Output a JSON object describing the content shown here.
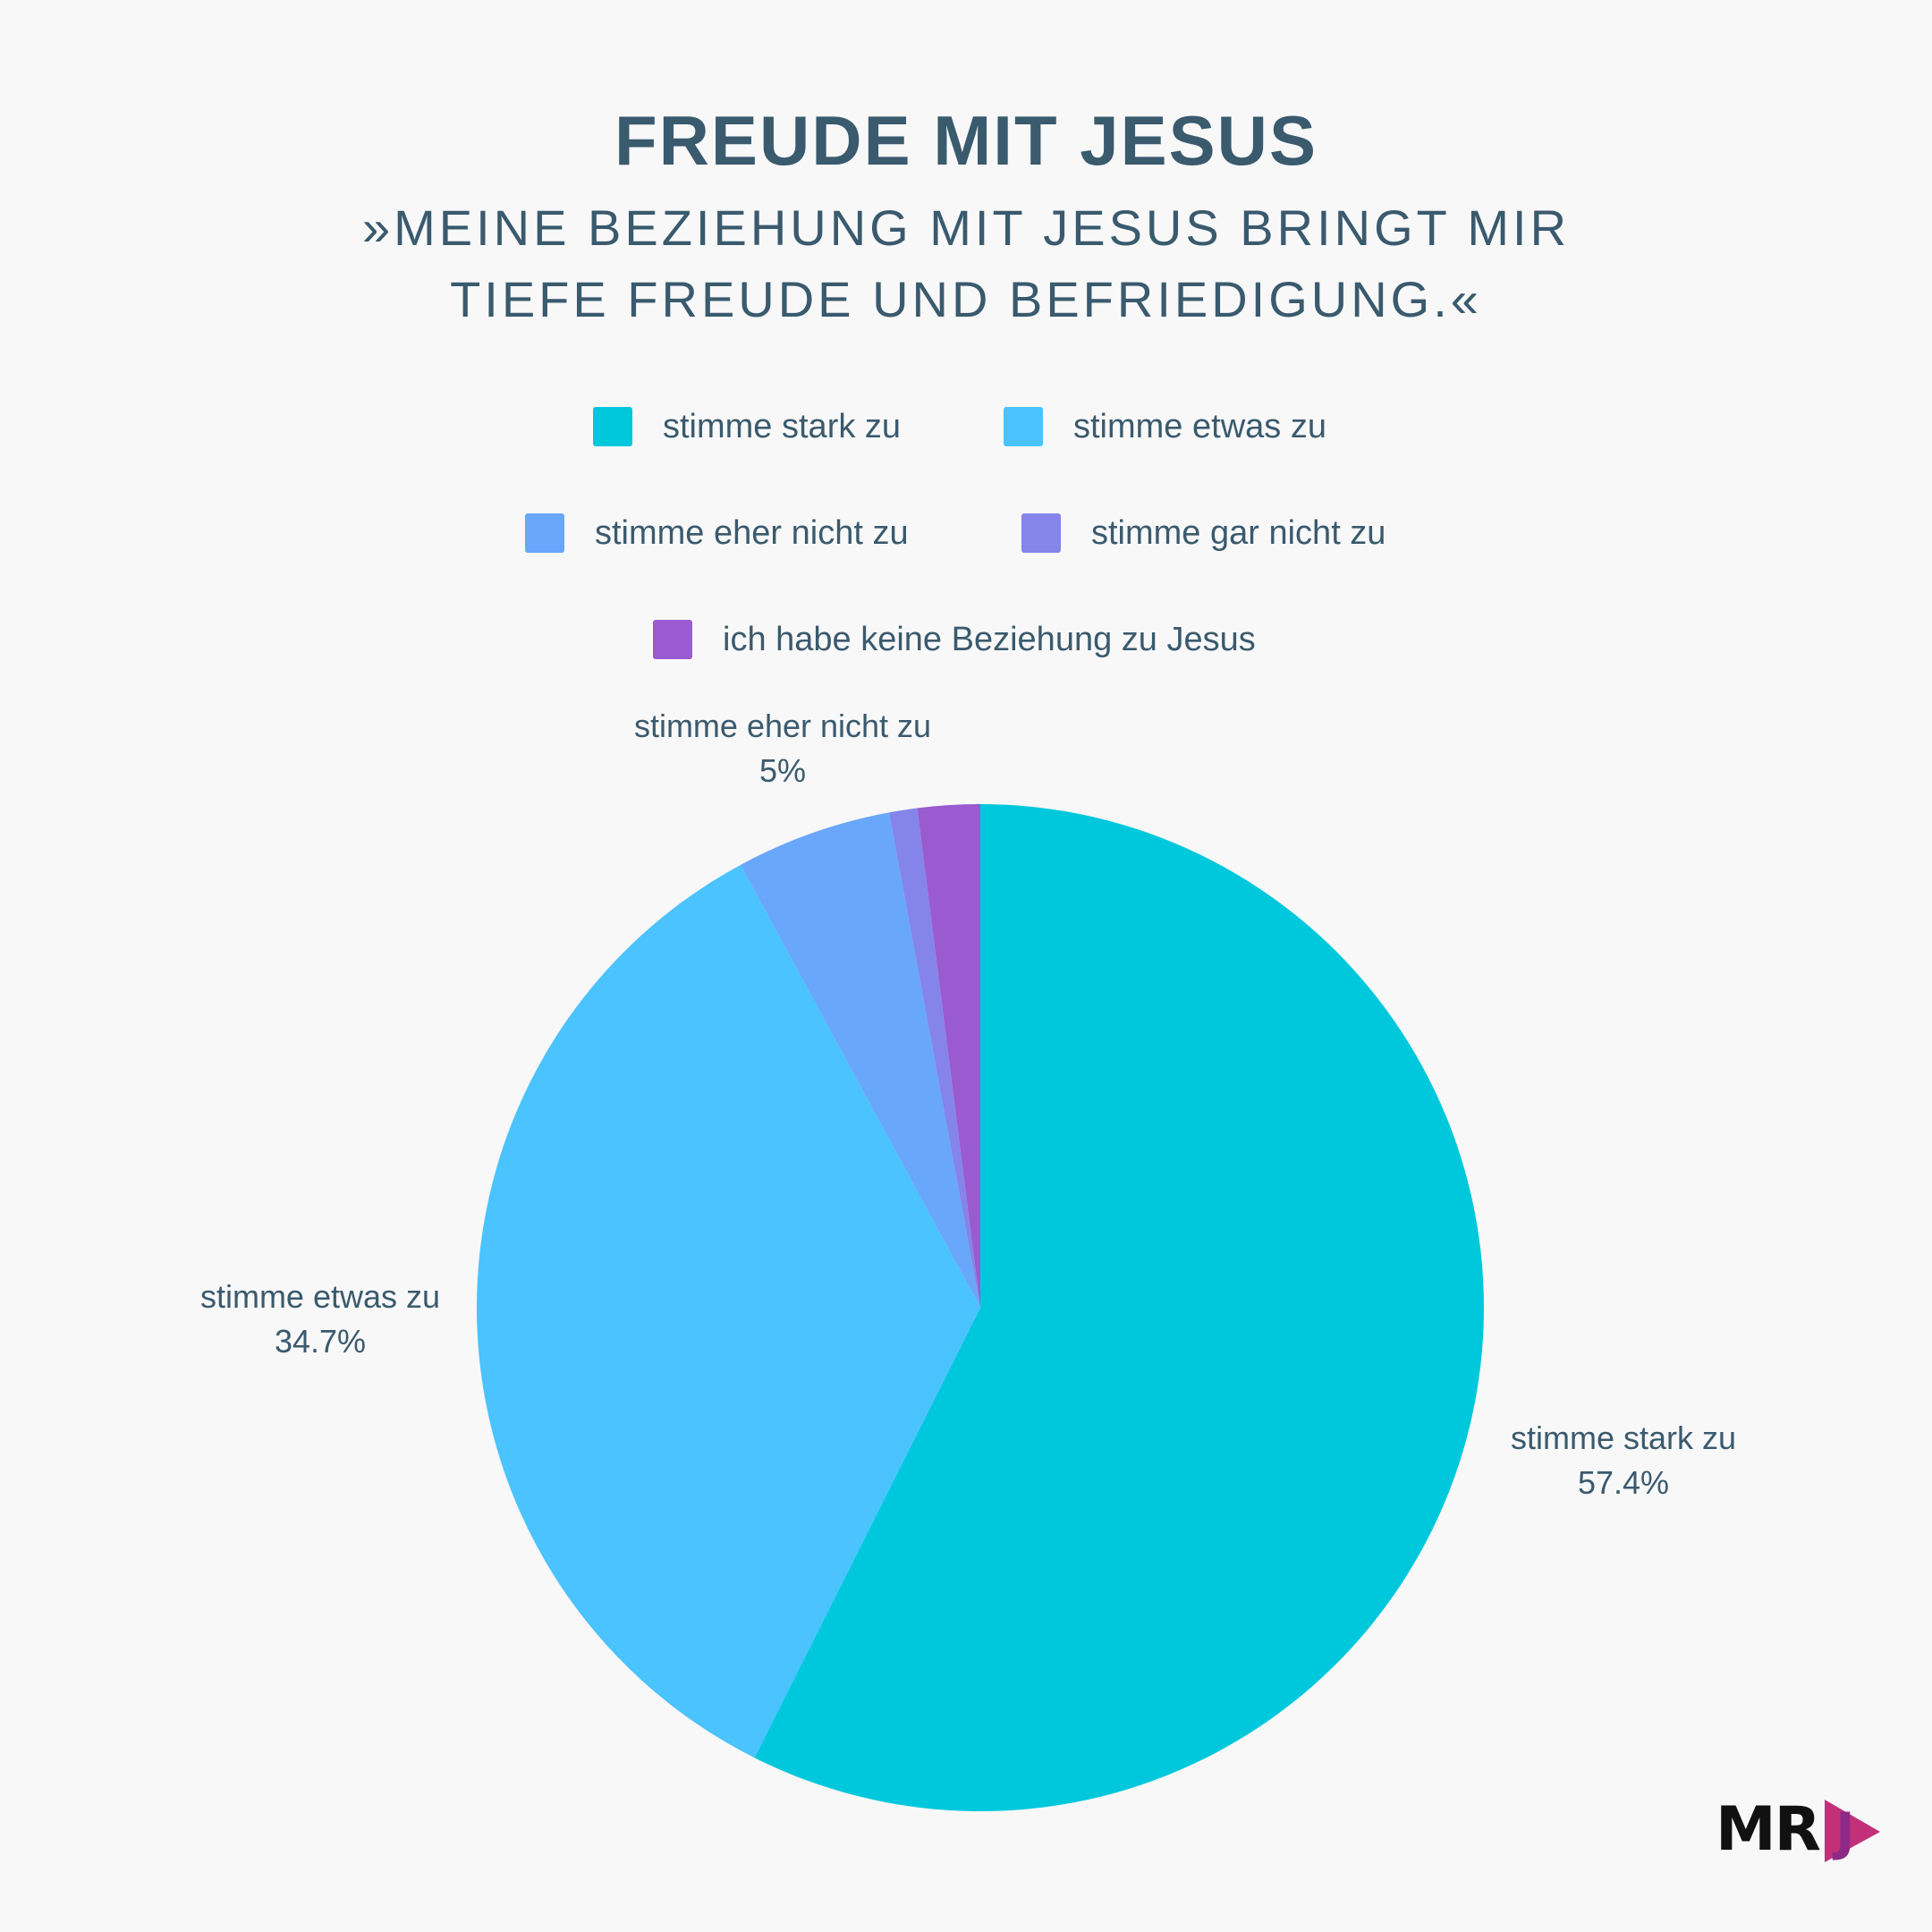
{
  "header": {
    "title": "FREUDE MIT JESUS",
    "subtitle_line1": "»MEINE BEZIEHUNG MIT JESUS BRINGT MIR",
    "subtitle_line2": "TIEFE FREUDE UND BEFRIEDIGUNG.«"
  },
  "legend": [
    {
      "label": "stimme stark zu",
      "color": "#00c8dc"
    },
    {
      "label": "stimme etwas zu",
      "color": "#4ac3ff"
    },
    {
      "label": "stimme eher nicht zu",
      "color": "#68a7fa"
    },
    {
      "label": "stimme gar nicht zu",
      "color": "#8484ea"
    },
    {
      "label": "ich habe keine Beziehung zu Jesus",
      "color": "#9a5bd1"
    }
  ],
  "chart_data": {
    "type": "pie",
    "title": "FREUDE MIT JESUS",
    "subtitle": "»MEINE BEZIEHUNG MIT JESUS BRINGT MIR TIEFE FREUDE UND BEFRIEDIGUNG.«",
    "start": "12 o'clock, clockwise",
    "slices": [
      {
        "name": "stimme stark zu",
        "value": 57.4,
        "value_label": "57.4%",
        "color": "#00c8dc",
        "labeled": true
      },
      {
        "name": "stimme etwas zu",
        "value": 34.7,
        "value_label": "34.7%",
        "color": "#4ac3ff",
        "labeled": true
      },
      {
        "name": "stimme eher nicht zu",
        "value": 5,
        "value_label": "5%",
        "color": "#68a7fa",
        "labeled": true
      },
      {
        "name": "stimme gar nicht zu",
        "value": 0.9,
        "value_label": "",
        "color": "#8484ea",
        "labeled": false
      },
      {
        "name": "ich habe keine Beziehung zu Jesus",
        "value": 2,
        "value_label": "",
        "color": "#9a5bd1",
        "labeled": false
      }
    ]
  },
  "logo": {
    "text": "MR",
    "mark": "J",
    "colors": {
      "primary": "#111111",
      "accent": "#c2307a",
      "accent2": "#8e2a86"
    }
  }
}
